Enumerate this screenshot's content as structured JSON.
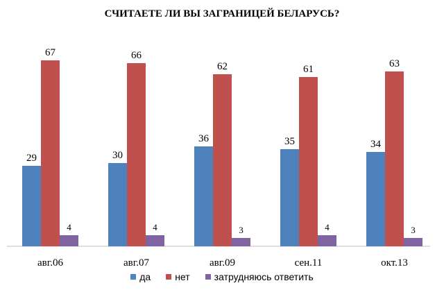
{
  "chart_data": {
    "type": "bar",
    "title": "СЧИТАЕТЕ ЛИ ВЫ ЗАГРАНИЦЕЙ БЕЛАРУСЬ?",
    "categories": [
      "авг.06",
      "авг.07",
      "авг.09",
      "сен.11",
      "окт.13"
    ],
    "series": [
      {
        "name": "да",
        "color": "#4f81bd",
        "values": [
          29,
          30,
          36,
          35,
          34
        ]
      },
      {
        "name": "нет",
        "color": "#c0504d",
        "values": [
          67,
          66,
          62,
          61,
          63
        ]
      },
      {
        "name": "затрудняюсь ответить",
        "color": "#8064a2",
        "values": [
          4,
          4,
          3,
          4,
          3
        ]
      }
    ],
    "ylim": [
      0,
      70
    ],
    "grid": false,
    "legend_position": "bottom"
  }
}
